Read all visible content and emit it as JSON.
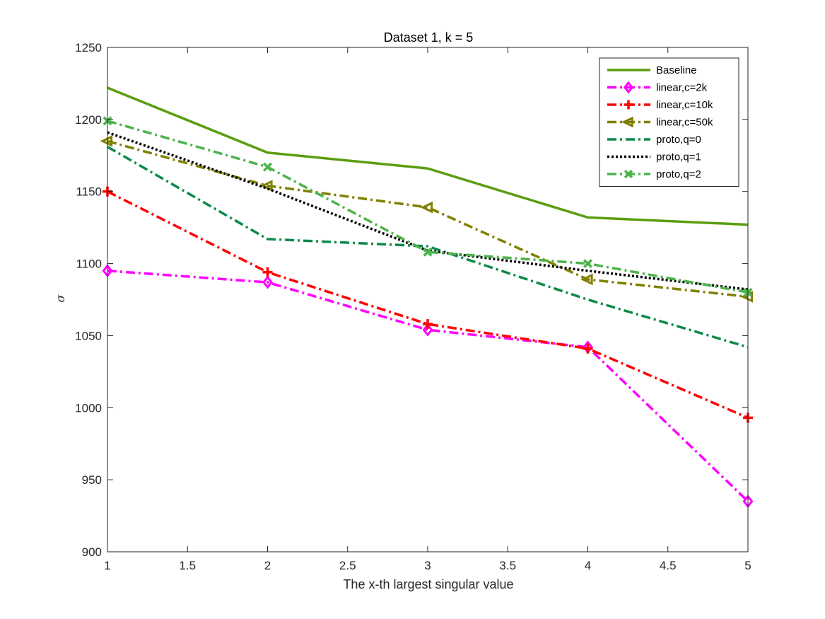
{
  "chart_data": {
    "type": "line",
    "title": "Dataset 1, k = 5",
    "xlabel": "The x-th largest singular value",
    "ylabel": "σ",
    "xlim": [
      1,
      5
    ],
    "ylim": [
      900,
      1250
    ],
    "xticks": [
      1,
      1.5,
      2,
      2.5,
      3,
      3.5,
      4,
      4.5,
      5
    ],
    "xtick_labels": [
      "1",
      "1.5",
      "2",
      "2.5",
      "3",
      "3.5",
      "4",
      "4.5",
      "5"
    ],
    "yticks": [
      900,
      950,
      1000,
      1050,
      1100,
      1150,
      1200,
      1250
    ],
    "ytick_labels": [
      "900",
      "950",
      "1000",
      "1050",
      "1100",
      "1150",
      "1200",
      "1250"
    ],
    "grid": false,
    "legend_position": "top-right",
    "x": [
      1,
      2,
      3,
      4,
      5
    ],
    "series": [
      {
        "name": "Baseline",
        "values": [
          1222,
          1177,
          1166,
          1132,
          1127
        ],
        "color": "#5a9e10",
        "dash": "solid",
        "marker": "none"
      },
      {
        "name": "linear,c=2k",
        "values": [
          1095,
          1087,
          1054,
          1042,
          935
        ],
        "color": "#ff00ff",
        "dash": "dashdot",
        "marker": "diamond"
      },
      {
        "name": "linear,c=10k",
        "values": [
          1150,
          1094,
          1058,
          1041,
          993
        ],
        "color": "#ff0000",
        "dash": "dashdot",
        "marker": "plus"
      },
      {
        "name": "linear,c=50k",
        "values": [
          1185,
          1154,
          1139,
          1089,
          1077
        ],
        "color": "#808000",
        "dash": "dashdot",
        "marker": "triangle-left"
      },
      {
        "name": "proto,q=0",
        "values": [
          1181,
          1117,
          1112,
          1075,
          1042
        ],
        "color": "#0b8a4a",
        "dash": "dashdot",
        "marker": "none"
      },
      {
        "name": "proto,q=1",
        "values": [
          1191,
          1152,
          1109,
          1095,
          1082
        ],
        "color": "#000000",
        "dash": "dotted",
        "marker": "none"
      },
      {
        "name": "proto,q=2",
        "values": [
          1199,
          1167,
          1108,
          1100,
          1080
        ],
        "color": "#4cb34c",
        "dash": "dashdot",
        "marker": "x"
      }
    ]
  }
}
